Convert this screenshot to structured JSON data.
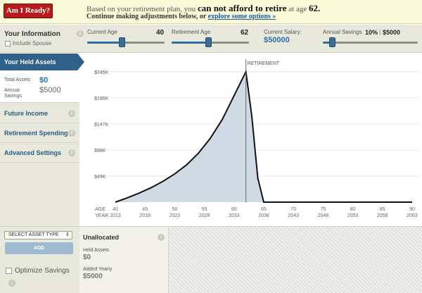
{
  "banner": {
    "button_label": "Am I Ready?",
    "line1_prefix": "Based on your retirement plan, you",
    "line1_strong": "can not afford to retire",
    "line1_mid": "at age",
    "line1_age": "62.",
    "line2_text": "Continue making adjustments below, or",
    "line2_link": "explore some options »"
  },
  "info": {
    "title": "Your Information",
    "info_icon": "i",
    "include_spouse": "Include Spouse",
    "current_age": {
      "label": "Current Age",
      "value": "40",
      "slider_fraction": 0.45
    },
    "retirement_age": {
      "label": "Retirement Age",
      "value": "62",
      "slider_fraction": 0.48
    },
    "salary": {
      "label": "Current Salary:",
      "value": "$50000"
    },
    "savings": {
      "label": "Annual Savings",
      "percent": "10%",
      "sep": "|",
      "amount": "$5000",
      "slider_fraction": 0.1
    }
  },
  "sidebar": {
    "held_assets": "Your Held Assets",
    "total_assets_label": "Total Assets",
    "total_assets_value": "$0",
    "annual_savings_label1": "Annual",
    "annual_savings_label2": "Savings",
    "annual_savings_value": "$5000",
    "items": [
      {
        "label": "Future Income"
      },
      {
        "label": "Retirement Spending"
      },
      {
        "label": "Advanced Settings"
      }
    ]
  },
  "chart_data": {
    "type": "area",
    "retirement_label": "RETIREMENT",
    "retirement_age": 62,
    "y_ticks": [
      "$245K",
      "$196K",
      "$147K",
      "$98K",
      "$49K"
    ],
    "y_tick_values": [
      245000,
      196000,
      147000,
      98000,
      49000
    ],
    "ylim": [
      0,
      250000
    ],
    "x_axis_label_age": "AGE",
    "x_axis_label_year": "YEAR",
    "ages": [
      "40",
      "45",
      "50",
      "55",
      "60",
      "65",
      "70",
      "75",
      "80",
      "85",
      "90"
    ],
    "years": [
      "2013",
      "2018",
      "2023",
      "2028",
      "2033",
      "2038",
      "2043",
      "2048",
      "2053",
      "2058",
      "2063"
    ],
    "xlim": [
      40,
      90
    ],
    "series": [
      {
        "x": [
          40,
          42,
          44,
          46,
          48,
          50,
          52,
          54,
          56,
          58,
          60,
          62,
          63,
          64,
          65,
          70,
          75,
          80,
          85,
          90
        ],
        "values": [
          0,
          8000,
          17000,
          27000,
          39000,
          53000,
          70000,
          92000,
          120000,
          155000,
          200000,
          245000,
          160000,
          45000,
          0,
          0,
          0,
          0,
          0,
          0
        ]
      }
    ],
    "fill_color": "#cfdae4",
    "line_color": "#111111"
  },
  "bottom": {
    "select_asset": "SELECT ASSET TYPE",
    "add_label": "ADD",
    "optimize": "Optimize Savings",
    "unallocated_title": "Unallocated",
    "held_assets_label": "Held Assets",
    "held_assets_value": "$0",
    "added_yearly_label": "Added Yearly",
    "added_yearly_value": "$5000"
  }
}
